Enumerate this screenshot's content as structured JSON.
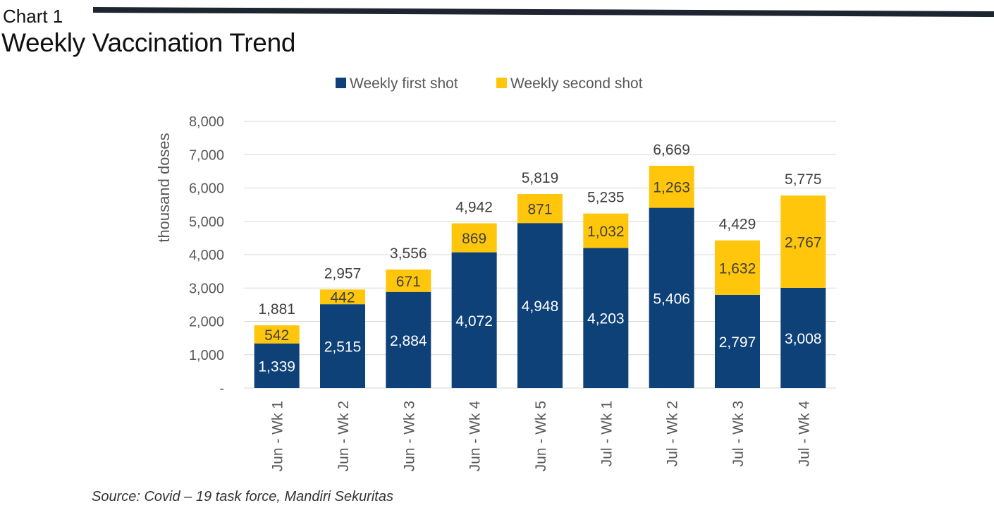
{
  "header": {
    "label": "Chart 1",
    "title": "Weekly Vaccination Trend"
  },
  "source": "Source: Covid – 19 task force, Mandiri Sekuritas",
  "colors": {
    "first_shot": "#0E4178",
    "second_shot": "#FFC60B",
    "grid": "#D9D9D9",
    "header_bar": "#1F2530"
  },
  "chart_data": {
    "type": "bar",
    "stacked": true,
    "categories": [
      "Jun - Wk 1",
      "Jun - Wk 2",
      "Jun - Wk 3",
      "Jun - Wk 4",
      "Jun - Wk 5",
      "Jul - Wk 1",
      "Jul - Wk 2",
      "Jul - Wk 3",
      "Jul - Wk 4"
    ],
    "series": [
      {
        "name": "Weekly first shot",
        "values": [
          1339,
          2515,
          2884,
          4072,
          4948,
          4203,
          5406,
          2797,
          3008
        ]
      },
      {
        "name": "Weekly second shot",
        "values": [
          542,
          442,
          671,
          869,
          871,
          1032,
          1263,
          1632,
          2767
        ]
      }
    ],
    "totals": [
      1881,
      2957,
      3556,
      4942,
      5819,
      5235,
      6669,
      4429,
      5775
    ],
    "ylabel": "thousand doses",
    "xlabel": "",
    "ylim": [
      0,
      8000
    ],
    "yticks": [
      0,
      1000,
      2000,
      3000,
      4000,
      5000,
      6000,
      7000,
      8000
    ],
    "ytick_labels": [
      "-",
      "1,000",
      "2,000",
      "3,000",
      "4,000",
      "5,000",
      "6,000",
      "7,000",
      "8,000"
    ],
    "legend_position": "top",
    "grid": true
  }
}
